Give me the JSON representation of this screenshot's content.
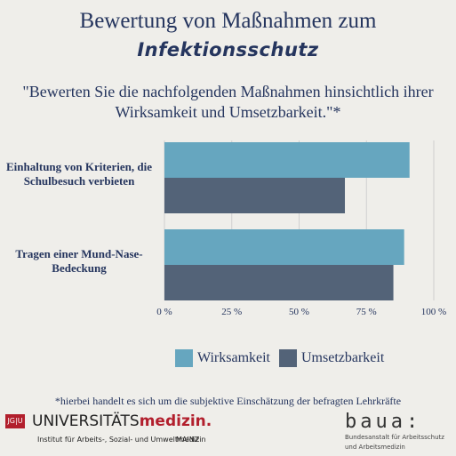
{
  "header": {
    "title": "Bewertung von Maßnahmen zum",
    "subtitle": "Infektionsschutz",
    "question": "\"Bewerten Sie die nachfolgenden Maßnahmen hinsichtlich ihrer Wirksamkeit und Umsetzbarkeit.\"*"
  },
  "chart_data": {
    "type": "bar",
    "orientation": "horizontal",
    "categories": [
      "Einhaltung von Kriterien, die Schulbesuch verbieten",
      "Tragen einer Mund-Nase-Bedeckung"
    ],
    "series": [
      {
        "name": "Wirksamkeit",
        "values": [
          91,
          89
        ],
        "color": "#66a6bf"
      },
      {
        "name": "Umsetzbarkeit",
        "values": [
          67,
          85
        ],
        "color": "#536378"
      }
    ],
    "xticks": [
      "0 %",
      "25 %",
      "50 %",
      "75 %",
      "100 %"
    ],
    "xlim": [
      0,
      100
    ],
    "grid": true,
    "legend": "bottom"
  },
  "legend": [
    {
      "label": "Wirksamkeit",
      "color": "#66a6bf"
    },
    {
      "label": "Umsetzbarkeit",
      "color": "#536378"
    }
  ],
  "footnote": "*hierbei handelt es sich um die subjektive Einschätzung der befragten Lehrkräfte",
  "logos": {
    "jgu": "JG|U",
    "uni_prefix": "UNIVERSITÄTS",
    "uni_suffix": "medizin.",
    "institute": "Institut für Arbeits-, Sozial- und Umweltmedizin",
    "mainz": "MAINZ",
    "baua": "baua:",
    "baua_sub_1": "Bundesanstalt für Arbeitsschutz",
    "baua_sub_2": "und Arbeitsmedizin"
  }
}
